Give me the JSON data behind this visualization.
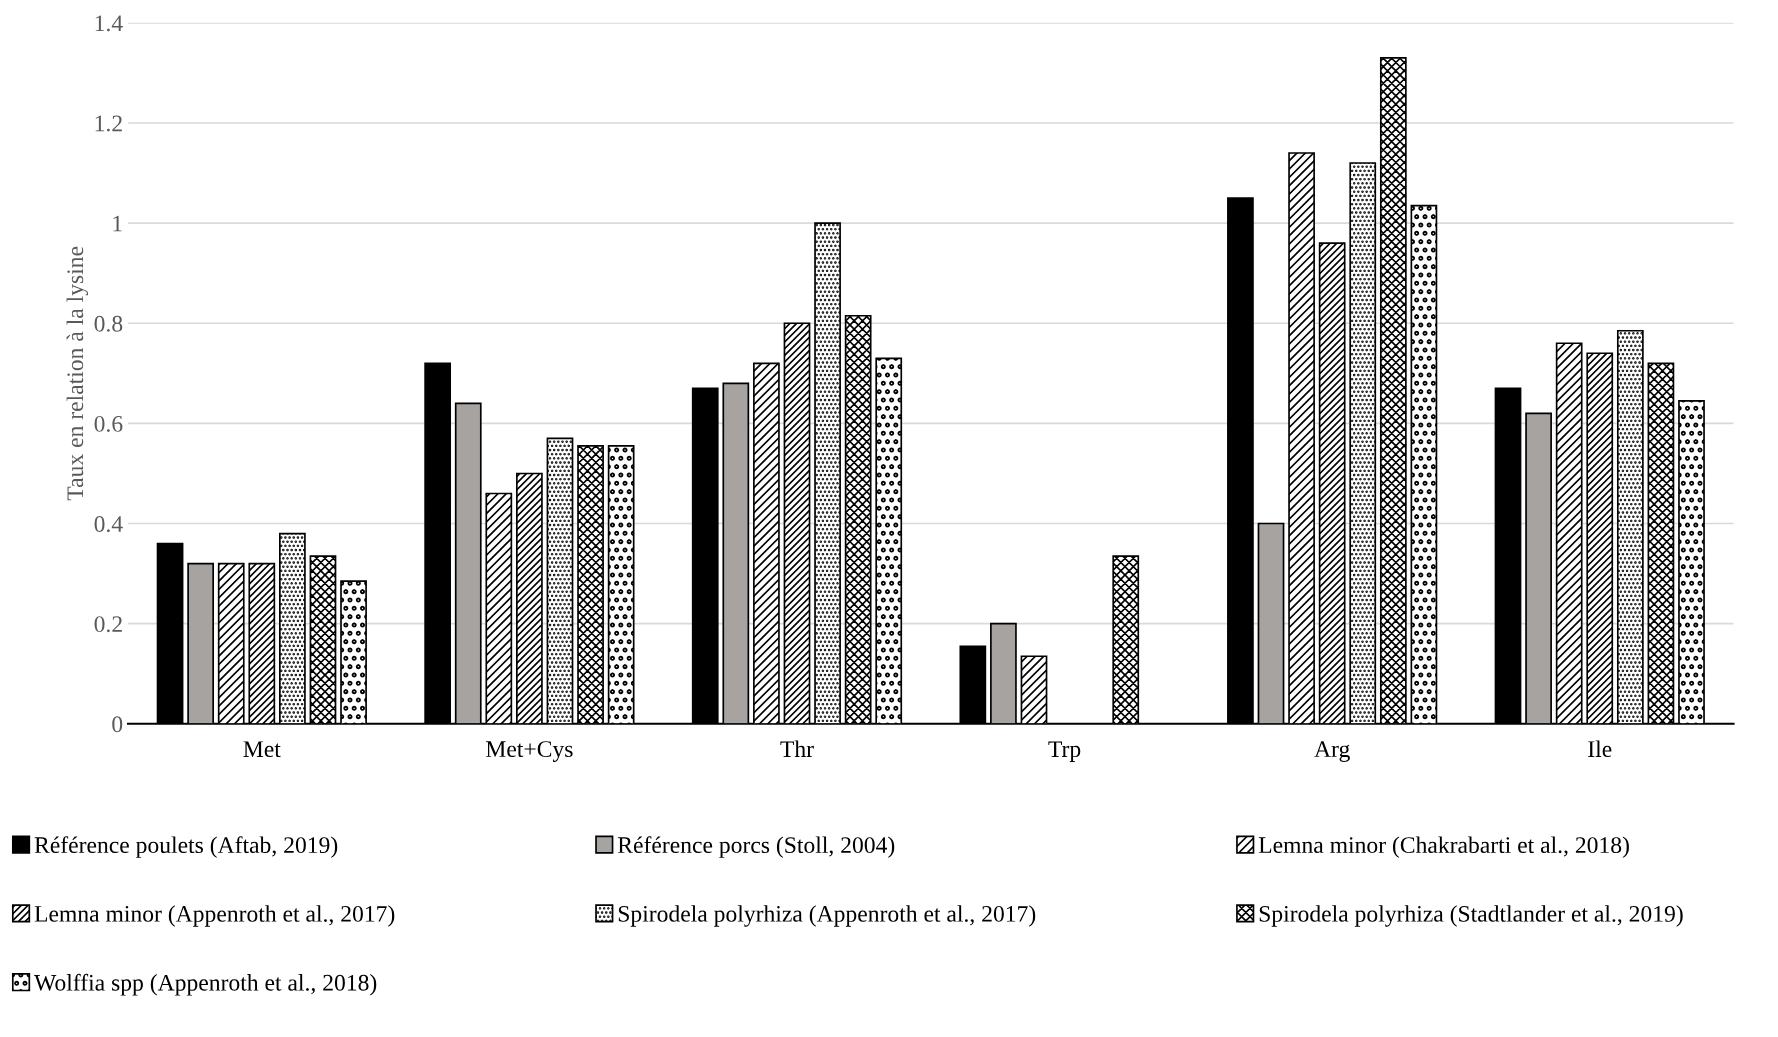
{
  "chart_data": {
    "type": "bar",
    "ylabel": "Taux en relation à la lysine",
    "categories": [
      "Met",
      "Met+Cys",
      "Thr",
      "Trp",
      "Arg",
      "Ile"
    ],
    "series": [
      {
        "name": "Référence poulets (Aftab, 2019)",
        "color": "#000000",
        "values": [
          0.36,
          0.72,
          0.67,
          0.155,
          1.05,
          0.67
        ]
      },
      {
        "name": "Référence porcs (Stoll, 2004)",
        "color": "#a6a3a1",
        "values": [
          0.32,
          0.64,
          0.68,
          0.2,
          0.4,
          0.62
        ]
      },
      {
        "name": "Lemna minor (Chakrabarti et al., 2018)",
        "color": "#000000",
        "values": [
          0.32,
          0.46,
          0.72,
          0.135,
          1.14,
          0.76
        ]
      },
      {
        "name": "Lemna minor (Appenroth et al., 2017)",
        "color": "#000000",
        "values": [
          0.32,
          0.5,
          0.8,
          null,
          0.96,
          0.74
        ]
      },
      {
        "name": "Spirodela polyrhiza (Appenroth et al., 2017)",
        "color": "#000000",
        "values": [
          0.38,
          0.57,
          1.0,
          null,
          1.12,
          0.785
        ]
      },
      {
        "name": "Spirodela polyrhiza (Stadtlander et al., 2019)",
        "color": "#000000",
        "values": [
          0.335,
          0.555,
          0.815,
          0.335,
          1.33,
          0.72
        ]
      },
      {
        "name": "Wolffia spp (Appenroth et al., 2018)",
        "color": "#000000",
        "values": [
          0.285,
          0.555,
          0.73,
          null,
          1.035,
          0.645
        ]
      }
    ],
    "ylim": [
      0,
      1.4
    ],
    "yticks": [
      0,
      0.2,
      0.4,
      0.6,
      0.8,
      1,
      1.2,
      1.4
    ],
    "grid": "y",
    "legend": "bottom"
  }
}
